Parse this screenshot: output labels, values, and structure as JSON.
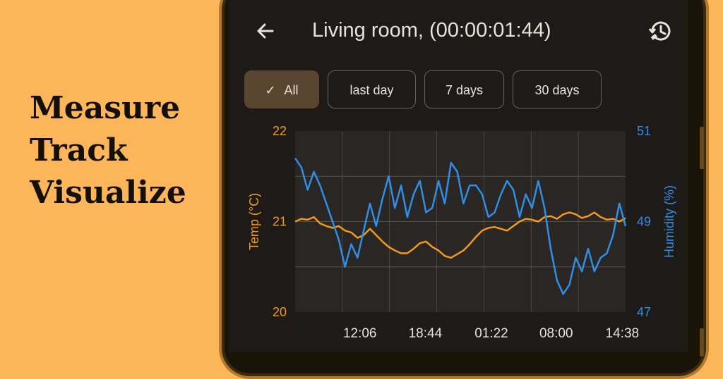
{
  "tagline": {
    "lines": [
      "Measure",
      "Track",
      "Visualize"
    ]
  },
  "app": {
    "title": "Living room, (00:00:01:44)",
    "back_icon": "arrow-left-icon",
    "history_icon": "history-satellite-icon"
  },
  "filters": {
    "selected_check": "✓",
    "chips": [
      {
        "label": "All",
        "selected": true
      },
      {
        "label": "last day",
        "selected": false
      },
      {
        "label": "7 days",
        "selected": false
      },
      {
        "label": "30 days",
        "selected": false
      }
    ]
  },
  "colors": {
    "temp": "#f29a1b",
    "humidity": "#2f8fe6",
    "background": "#fdb55a",
    "chip_selected": "#5a4630"
  },
  "chart_data": {
    "type": "line",
    "ylabel": "Temp (°C)",
    "y2label": "Humidity (%)",
    "ylim": [
      20,
      22
    ],
    "y_ticks": [
      "22",
      "21",
      "20"
    ],
    "y2lim": [
      47,
      51
    ],
    "y2_ticks": [
      "51",
      "49",
      "47"
    ],
    "x_ticks": [
      "12:06",
      "18:44",
      "01:22",
      "08:00",
      "14:38"
    ],
    "grid": true,
    "series": [
      {
        "name": "Temp (°C)",
        "axis": "left",
        "values": [
          21.0,
          21.03,
          21.02,
          21.05,
          20.98,
          20.95,
          20.93,
          20.95,
          20.9,
          20.88,
          20.82,
          20.85,
          20.92,
          20.85,
          20.78,
          20.72,
          20.68,
          20.65,
          20.65,
          20.7,
          20.76,
          20.78,
          20.72,
          20.68,
          20.62,
          20.6,
          20.64,
          20.68,
          20.75,
          20.83,
          20.9,
          20.93,
          20.94,
          20.92,
          20.9,
          20.95,
          21.0,
          21.03,
          21.02,
          21.0,
          21.05,
          21.06,
          21.03,
          21.08,
          21.1,
          21.08,
          21.04,
          21.06,
          21.1,
          21.05,
          21.02,
          21.03,
          21.0,
          21.04
        ]
      },
      {
        "name": "Humidity (%)",
        "axis": "right",
        "values": [
          50.4,
          50.2,
          49.7,
          50.1,
          49.8,
          49.4,
          49.0,
          48.6,
          48.0,
          48.5,
          48.2,
          48.8,
          49.4,
          48.9,
          49.5,
          50.0,
          49.3,
          49.8,
          49.1,
          49.6,
          49.9,
          49.2,
          49.3,
          49.9,
          49.4,
          50.3,
          50.1,
          49.4,
          49.8,
          49.8,
          49.6,
          49.1,
          49.2,
          49.6,
          49.9,
          49.7,
          49.1,
          49.6,
          49.3,
          49.9,
          49.3,
          48.4,
          47.7,
          47.4,
          47.6,
          48.2,
          47.9,
          48.4,
          47.9,
          48.2,
          48.3,
          48.7,
          49.4,
          48.9
        ]
      }
    ]
  }
}
